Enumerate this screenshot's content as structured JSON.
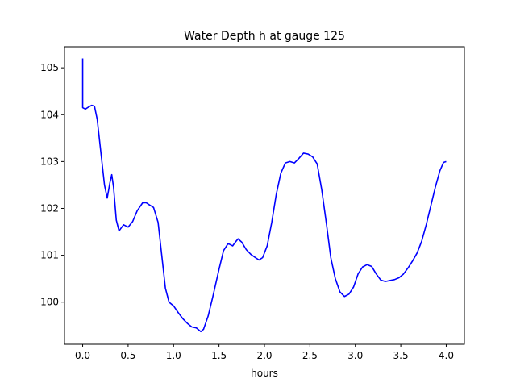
{
  "chart_data": {
    "type": "line",
    "title": "Water Depth h at gauge 125",
    "xlabel": "hours",
    "ylabel": "",
    "xlim": [
      -0.2,
      4.2
    ],
    "ylim": [
      99.1,
      105.45
    ],
    "grid": false,
    "x_ticks": [
      0.0,
      0.5,
      1.0,
      1.5,
      2.0,
      2.5,
      3.0,
      3.5,
      4.0
    ],
    "x_tick_labels": [
      "0.0",
      "0.5",
      "1.0",
      "1.5",
      "2.0",
      "2.5",
      "3.0",
      "3.5",
      "4.0"
    ],
    "y_ticks": [
      100,
      101,
      102,
      103,
      104,
      105
    ],
    "y_tick_labels": [
      "100",
      "101",
      "102",
      "103",
      "104",
      "105"
    ],
    "series": [
      {
        "color": "#0000ff",
        "points": [
          [
            0.0,
            105.2
          ],
          [
            0.0,
            104.15
          ],
          [
            0.03,
            104.12
          ],
          [
            0.07,
            104.17
          ],
          [
            0.1,
            104.2
          ],
          [
            0.13,
            104.18
          ],
          [
            0.16,
            103.9
          ],
          [
            0.2,
            103.2
          ],
          [
            0.24,
            102.5
          ],
          [
            0.27,
            102.22
          ],
          [
            0.3,
            102.55
          ],
          [
            0.32,
            102.72
          ],
          [
            0.34,
            102.45
          ],
          [
            0.37,
            101.75
          ],
          [
            0.4,
            101.52
          ],
          [
            0.45,
            101.65
          ],
          [
            0.5,
            101.6
          ],
          [
            0.55,
            101.72
          ],
          [
            0.6,
            101.95
          ],
          [
            0.66,
            102.12
          ],
          [
            0.7,
            102.12
          ],
          [
            0.73,
            102.08
          ],
          [
            0.78,
            102.02
          ],
          [
            0.83,
            101.7
          ],
          [
            0.87,
            101.0
          ],
          [
            0.91,
            100.3
          ],
          [
            0.95,
            100.0
          ],
          [
            1.0,
            99.92
          ],
          [
            1.05,
            99.78
          ],
          [
            1.1,
            99.65
          ],
          [
            1.15,
            99.55
          ],
          [
            1.2,
            99.47
          ],
          [
            1.25,
            99.45
          ],
          [
            1.3,
            99.37
          ],
          [
            1.33,
            99.42
          ],
          [
            1.38,
            99.7
          ],
          [
            1.43,
            100.1
          ],
          [
            1.5,
            100.7
          ],
          [
            1.55,
            101.1
          ],
          [
            1.6,
            101.25
          ],
          [
            1.65,
            101.2
          ],
          [
            1.68,
            101.28
          ],
          [
            1.71,
            101.35
          ],
          [
            1.75,
            101.28
          ],
          [
            1.8,
            101.12
          ],
          [
            1.85,
            101.02
          ],
          [
            1.9,
            100.95
          ],
          [
            1.94,
            100.9
          ],
          [
            1.98,
            100.95
          ],
          [
            2.03,
            101.2
          ],
          [
            2.08,
            101.7
          ],
          [
            2.13,
            102.3
          ],
          [
            2.18,
            102.75
          ],
          [
            2.23,
            102.97
          ],
          [
            2.28,
            103.0
          ],
          [
            2.33,
            102.97
          ],
          [
            2.38,
            103.07
          ],
          [
            2.43,
            103.18
          ],
          [
            2.48,
            103.16
          ],
          [
            2.53,
            103.1
          ],
          [
            2.58,
            102.95
          ],
          [
            2.63,
            102.4
          ],
          [
            2.68,
            101.7
          ],
          [
            2.73,
            100.95
          ],
          [
            2.78,
            100.5
          ],
          [
            2.83,
            100.22
          ],
          [
            2.88,
            100.12
          ],
          [
            2.93,
            100.17
          ],
          [
            2.98,
            100.32
          ],
          [
            3.03,
            100.6
          ],
          [
            3.08,
            100.75
          ],
          [
            3.13,
            100.8
          ],
          [
            3.18,
            100.76
          ],
          [
            3.23,
            100.6
          ],
          [
            3.28,
            100.47
          ],
          [
            3.33,
            100.44
          ],
          [
            3.38,
            100.46
          ],
          [
            3.43,
            100.48
          ],
          [
            3.48,
            100.52
          ],
          [
            3.53,
            100.6
          ],
          [
            3.58,
            100.73
          ],
          [
            3.63,
            100.88
          ],
          [
            3.68,
            101.05
          ],
          [
            3.73,
            101.3
          ],
          [
            3.78,
            101.65
          ],
          [
            3.83,
            102.05
          ],
          [
            3.88,
            102.45
          ],
          [
            3.93,
            102.8
          ],
          [
            3.97,
            102.98
          ],
          [
            4.0,
            103.0
          ]
        ]
      }
    ]
  }
}
